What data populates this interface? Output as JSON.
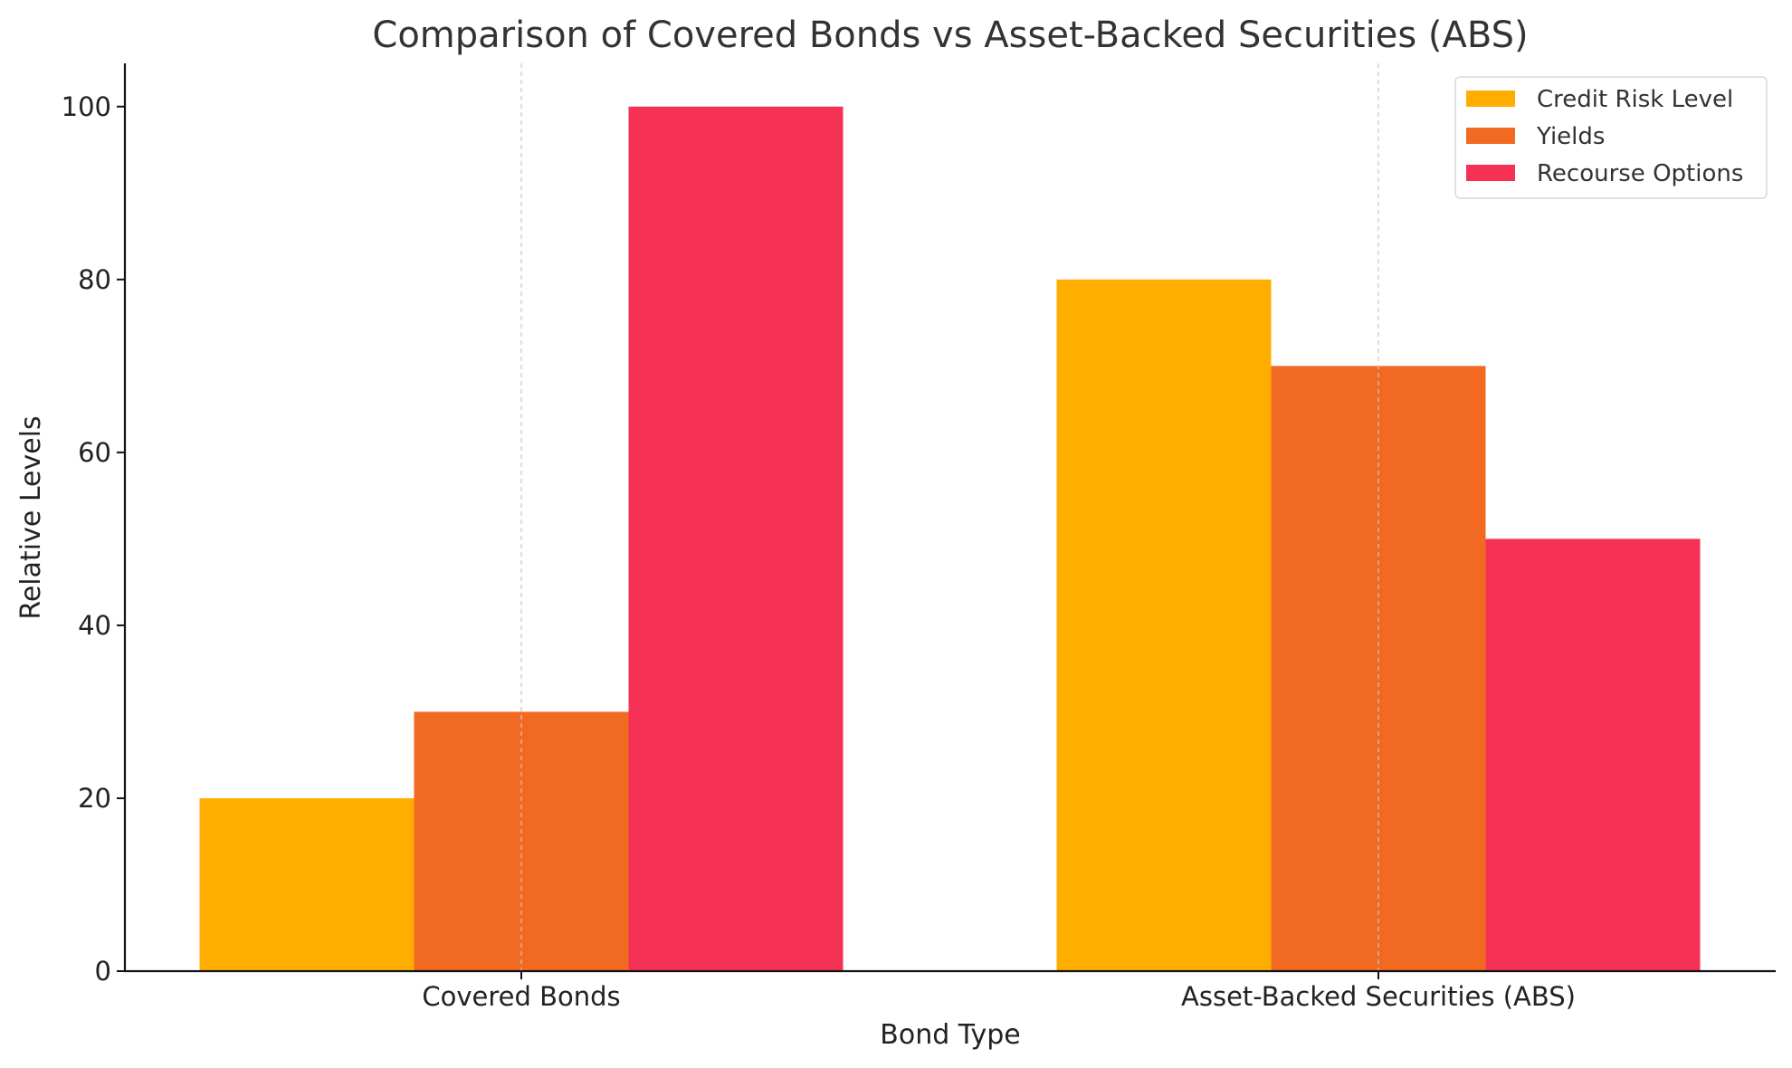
{
  "chart_data": {
    "type": "bar",
    "title": "Comparison of Covered Bonds vs Asset-Backed Securities (ABS)",
    "xlabel": "Bond Type",
    "ylabel": "Relative Levels",
    "categories": [
      "Covered Bonds",
      "Asset-Backed Securities (ABS)"
    ],
    "series": [
      {
        "name": "Credit Risk Level",
        "values": [
          20,
          80
        ],
        "color": "#FFAE00"
      },
      {
        "name": "Yields",
        "values": [
          30,
          70
        ],
        "color": "#F26A22"
      },
      {
        "name": "Recourse Options",
        "values": [
          100,
          50
        ],
        "color": "#F53255"
      }
    ],
    "ylim": [
      0,
      105
    ],
    "yticks": [
      0,
      20,
      40,
      60,
      80,
      100
    ],
    "grid": "vertical dashed at categories",
    "legend_position": "top-right"
  }
}
